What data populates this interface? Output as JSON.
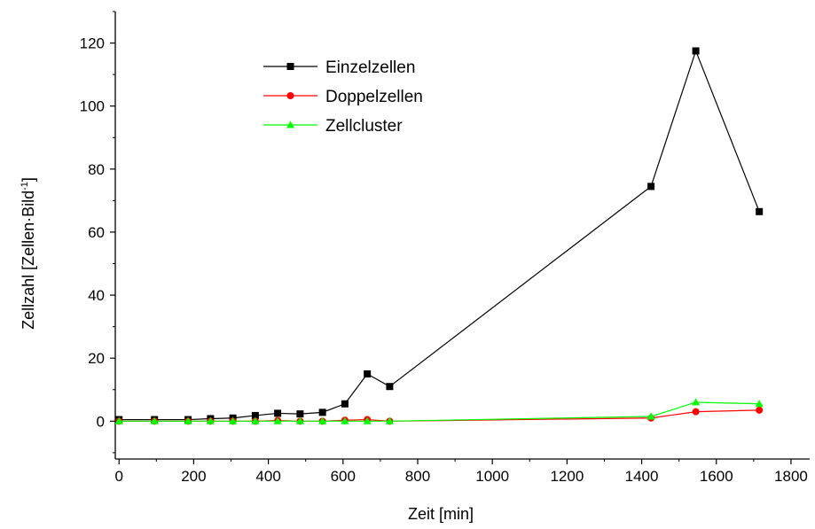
{
  "chart_data": {
    "type": "line",
    "xlabel": "Zeit [min]",
    "ylabel": "Zellzahl [Zellen·Bild",
    "ylabel_superscript": "-1",
    "ylabel_suffix": "]",
    "xlim": [
      -10,
      1850
    ],
    "ylim": [
      -12,
      130
    ],
    "x_ticks": [
      0,
      200,
      400,
      600,
      800,
      1000,
      1200,
      1400,
      1600,
      1800
    ],
    "y_ticks": [
      0,
      20,
      40,
      60,
      80,
      100,
      120
    ],
    "x_tick_labels": [
      "0",
      "200",
      "400",
      "600",
      "800",
      "1000",
      "1200",
      "1400",
      "1600",
      "1800"
    ],
    "y_tick_labels": [
      "0",
      "20",
      "40",
      "60",
      "80",
      "100",
      "120"
    ],
    "legend_position": "top-center",
    "grid": false,
    "series": [
      {
        "name": "Einzelzellen",
        "color": "#000000",
        "marker": "square",
        "x": [
          0,
          95,
          185,
          245,
          305,
          365,
          425,
          485,
          545,
          605,
          665,
          725,
          1425,
          1545,
          1715
        ],
        "y": [
          0.5,
          0.5,
          0.5,
          0.8,
          1.0,
          1.8,
          2.5,
          2.3,
          2.8,
          5.5,
          15.0,
          11.0,
          74.5,
          117.5,
          66.5
        ]
      },
      {
        "name": "Doppelzellen",
        "color": "#ff0000",
        "marker": "circle",
        "x": [
          0,
          95,
          185,
          245,
          305,
          365,
          425,
          485,
          545,
          605,
          665,
          725,
          1425,
          1545,
          1715
        ],
        "y": [
          0,
          0,
          0,
          0,
          0,
          0,
          0.2,
          0,
          0,
          0.3,
          0.5,
          0,
          1.0,
          3.0,
          3.5
        ]
      },
      {
        "name": "Zellcluster",
        "color": "#00ff00",
        "marker": "triangle",
        "x": [
          0,
          95,
          185,
          245,
          305,
          365,
          425,
          485,
          545,
          605,
          665,
          725,
          1425,
          1545,
          1715
        ],
        "y": [
          0,
          0,
          0,
          0,
          0,
          0,
          0,
          0,
          0,
          0,
          0,
          0,
          1.5,
          6.0,
          5.5
        ]
      }
    ]
  }
}
